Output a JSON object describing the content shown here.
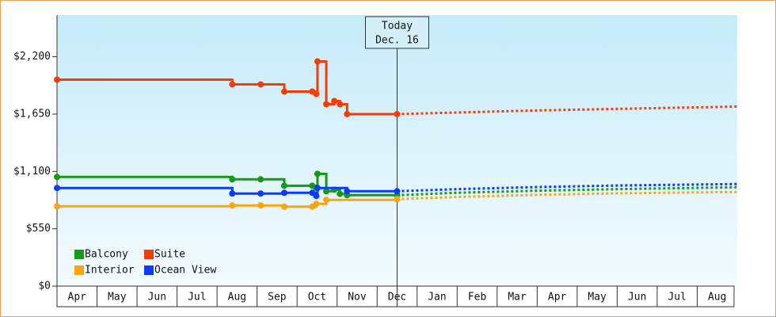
{
  "chart_data": {
    "type": "line",
    "step": true,
    "categories": [
      "Apr",
      "May",
      "Jun",
      "Jul",
      "Aug",
      "Sep",
      "Oct",
      "Nov",
      "Dec",
      "Jan",
      "Feb",
      "Mar",
      "Apr",
      "May",
      "Jun",
      "Jul",
      "Aug"
    ],
    "xlim": [
      0,
      17
    ],
    "ylim": [
      0,
      2600
    ],
    "yticks": [
      {
        "value": 0,
        "label": "$0"
      },
      {
        "value": 550,
        "label": "$550"
      },
      {
        "value": 1100,
        "label": "$1,100"
      },
      {
        "value": 1650,
        "label": "$1,650"
      },
      {
        "value": 2200,
        "label": "$2,200"
      }
    ],
    "annotation": {
      "x": 8.5,
      "label": "Today",
      "date": "Dec. 16"
    },
    "series": [
      {
        "name": "Balcony",
        "color": "#149a14",
        "x": [
          0,
          4.38,
          5.09,
          5.68,
          6.38,
          6.48,
          6.51,
          6.73,
          6.93,
          7.07,
          7.25,
          8.5
        ],
        "values": [
          1047,
          1024,
          1024,
          963,
          963,
          941,
          1077,
          910,
          925,
          885,
          872,
          872
        ],
        "forecast": {
          "x": [
            8.5,
            10,
            12,
            14,
            17
          ],
          "values": [
            872,
            895,
            915,
            930,
            948
          ]
        }
      },
      {
        "name": "Suite",
        "color": "#f23c0a",
        "x": [
          0,
          4.38,
          5.09,
          5.68,
          6.38,
          6.48,
          6.51,
          6.73,
          6.93,
          7.07,
          7.25,
          8.5
        ],
        "values": [
          1980,
          1935,
          1935,
          1866,
          1866,
          1843,
          2155,
          1745,
          1775,
          1745,
          1650,
          1650
        ],
        "forecast": {
          "x": [
            8.5,
            10,
            12,
            14,
            17
          ],
          "values": [
            1650,
            1665,
            1685,
            1700,
            1722
          ]
        }
      },
      {
        "name": "Interior",
        "color": "#f7a511",
        "x": [
          0,
          4.38,
          5.09,
          5.68,
          6.38,
          6.48,
          6.73,
          8.5
        ],
        "values": [
          766,
          774,
          774,
          762,
          762,
          789,
          827,
          834
        ],
        "forecast": {
          "x": [
            8.5,
            10,
            12,
            14,
            17
          ],
          "values": [
            834,
            855,
            875,
            890,
            903
          ]
        }
      },
      {
        "name": "Ocean View",
        "color": "#0a3cf5",
        "x": [
          0,
          4.38,
          5.09,
          5.68,
          6.38,
          6.48,
          6.51,
          7.25,
          8.5
        ],
        "values": [
          941,
          888,
          888,
          895,
          895,
          865,
          941,
          910,
          910
        ],
        "forecast": {
          "x": [
            8.5,
            10,
            12,
            14,
            17
          ],
          "values": [
            910,
            930,
            950,
            965,
            979
          ]
        }
      }
    ]
  }
}
